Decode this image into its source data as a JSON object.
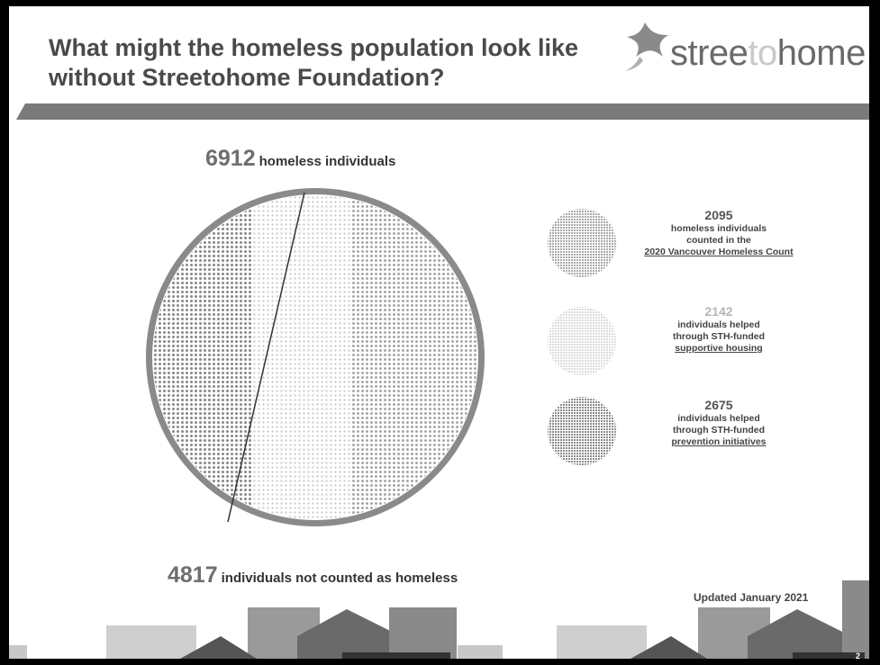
{
  "slide": {
    "title_line1": "What might the homeless population look like",
    "title_line2": "without Streetohome Foundation?",
    "logo": {
      "part1": "stree",
      "part2": "to",
      "part3": "home"
    },
    "page_number": "2",
    "updated": "Updated January 2021"
  },
  "chart_data": {
    "type": "pie",
    "total": {
      "value": "6912",
      "label": "homeless individuals"
    },
    "not_counted": {
      "value": "4817",
      "label": "individuals not counted as homeless"
    },
    "series": [
      {
        "value": 2095,
        "number": "2095",
        "line1": "homeless individuals",
        "line2": "counted in the",
        "line3": "2020 Vancouver Homeless Count",
        "color": "#8f8f8f"
      },
      {
        "value": 2142,
        "number": "2142",
        "line1": "individuals helped",
        "line2": "through STH-funded",
        "line3": "supportive housing",
        "color": "#d4d4d4"
      },
      {
        "value": 2675,
        "number": "2675",
        "line1": "individuals helped",
        "line2": "through STH-funded",
        "line3": "prevention initiatives",
        "color": "#7a7a7a"
      }
    ]
  }
}
